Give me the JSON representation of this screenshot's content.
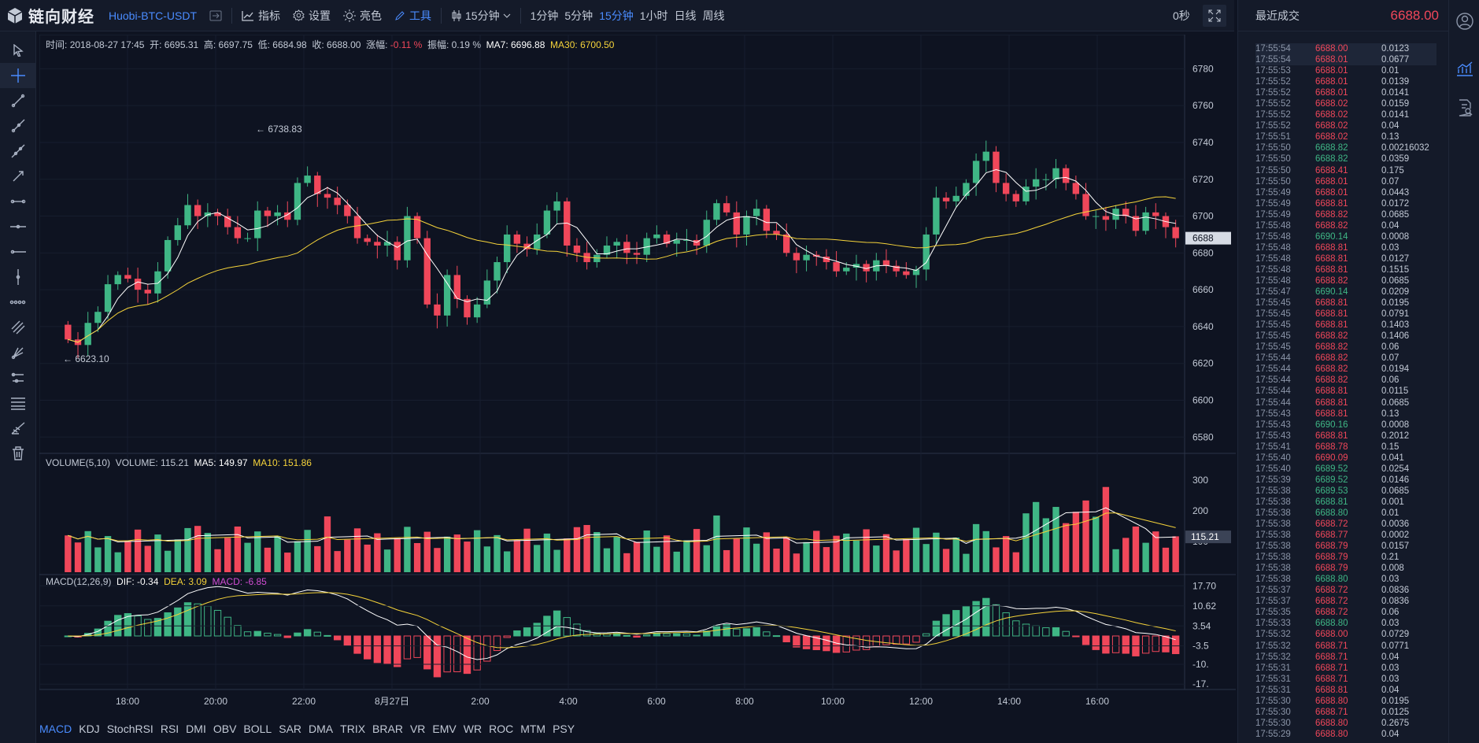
{
  "brand": {
    "name": "链向财经",
    "icon": "cube-logo-icon"
  },
  "symbol": "Huobi-BTC-USDT",
  "menu": {
    "indicator": "指标",
    "settings": "设置",
    "theme": "亮色",
    "tools": "工具"
  },
  "period": {
    "selected": "15分钟",
    "options": [
      "1分钟",
      "5分钟",
      "15分钟",
      "1小时",
      "日线",
      "周线"
    ],
    "active_index": 2
  },
  "timer": "0秒",
  "info": {
    "time_label": "时间:",
    "time": "2018-08-27 17:45",
    "open_label": "开:",
    "open": "6695.31",
    "high_label": "高:",
    "high": "6697.75",
    "low_label": "低:",
    "low": "6684.98",
    "close_label": "收:",
    "close": "6688.00",
    "change_label": "涨幅:",
    "change": "-0.11 %",
    "amp_label": "振幅:",
    "amp": "0.19 %",
    "ma7": "MA7: 6696.88",
    "ma30": "MA30: 6700.50"
  },
  "volume_info": {
    "label": "VOLUME(5,10)",
    "volume": "VOLUME: 115.21",
    "ma5": "MA5: 149.97",
    "ma10": "MA10: 151.86"
  },
  "macd_info": {
    "label": "MACD(12,26,9)",
    "dif": "DIF: -0.34",
    "dea": "DEA: 3.09",
    "macd": "MACD: -6.85"
  },
  "indicator_tabs": [
    "MACD",
    "KDJ",
    "StochRSI",
    "RSI",
    "DMI",
    "OBV",
    "BOLL",
    "SAR",
    "DMA",
    "TRIX",
    "BRAR",
    "VR",
    "EMV",
    "WR",
    "ROC",
    "MTM",
    "PSY"
  ],
  "chart_data": {
    "type": "candlestick",
    "price_axis": {
      "ticks": [
        "6780",
        "6760",
        "6740",
        "6720",
        "6700",
        "6680",
        "6660",
        "6640",
        "6620",
        "6600",
        "6580"
      ],
      "range": [
        6572,
        6790
      ],
      "current": "6688"
    },
    "time_axis": [
      "18:00",
      "20:00",
      "22:00",
      "8月27日",
      "2:00",
      "4:00",
      "6:00",
      "8:00",
      "10:00",
      "12:00",
      "14:00",
      "16:00"
    ],
    "high_marker": "6738.83",
    "low_marker": "6623.10",
    "close": [
      6633,
      6630,
      6642,
      6648,
      6663,
      6668,
      6666,
      6660,
      6658,
      6670,
      6687,
      6695,
      6706,
      6700,
      6702,
      6700,
      6694,
      6688,
      6688,
      6703,
      6700,
      6702,
      6698,
      6718,
      6722,
      6712,
      6710,
      6706,
      6700,
      6688,
      6686,
      6684,
      6686,
      6676,
      6700,
      6688,
      6652,
      6646,
      6668,
      6655,
      6645,
      6652,
      6665,
      6675,
      6690,
      6685,
      6682,
      6690,
      6703,
      6708,
      6684,
      6680,
      6675,
      6679,
      6684,
      6686,
      6680,
      6679,
      6688,
      6690,
      6685,
      6687,
      6687,
      6684,
      6698,
      6707,
      6702,
      6690,
      6700,
      6704,
      6692,
      6690,
      6680,
      6676,
      6679,
      6678,
      6675,
      6670,
      6672,
      6674,
      6670,
      6676,
      6673,
      6670,
      6668,
      6671,
      6690,
      6710,
      6708,
      6711,
      6718,
      6730,
      6735,
      6718,
      6712,
      6708,
      6716,
      6720,
      6720,
      6726,
      6718,
      6712,
      6700,
      6700,
      6698,
      6704,
      6700,
      6692,
      6702,
      6700,
      6694,
      6688
    ],
    "volume_axis": [
      "300",
      "200",
      "100"
    ],
    "volume_current": "115.21",
    "macd_axis": [
      "17.70",
      "10.62",
      "3.54",
      "-3.5",
      "-10.",
      "-17."
    ]
  },
  "trades": {
    "title": "最近成交",
    "last_price": "6688.00",
    "rows": [
      [
        "17:55:54",
        "6688.00",
        "0.0123",
        "r"
      ],
      [
        "17:55:54",
        "6688.01",
        "0.0677",
        "r"
      ],
      [
        "17:55:53",
        "6688.01",
        "0.01",
        "r"
      ],
      [
        "17:55:52",
        "6688.01",
        "0.0139",
        "r"
      ],
      [
        "17:55:52",
        "6688.01",
        "0.0141",
        "r"
      ],
      [
        "17:55:52",
        "6688.02",
        "0.0159",
        "r"
      ],
      [
        "17:55:52",
        "6688.02",
        "0.0141",
        "r"
      ],
      [
        "17:55:52",
        "6688.02",
        "0.04",
        "r"
      ],
      [
        "17:55:51",
        "6688.02",
        "0.13",
        "r"
      ],
      [
        "17:55:50",
        "6688.82",
        "0.00216032",
        "g"
      ],
      [
        "17:55:50",
        "6688.82",
        "0.0359",
        "g"
      ],
      [
        "17:55:50",
        "6688.41",
        "0.175",
        "r"
      ],
      [
        "17:55:50",
        "6688.01",
        "0.07",
        "r"
      ],
      [
        "17:55:49",
        "6688.01",
        "0.0443",
        "r"
      ],
      [
        "17:55:49",
        "6688.81",
        "0.0172",
        "r"
      ],
      [
        "17:55:49",
        "6688.82",
        "0.0685",
        "r"
      ],
      [
        "17:55:48",
        "6688.82",
        "0.04",
        "r"
      ],
      [
        "17:55:48",
        "6690.14",
        "0.0008",
        "g"
      ],
      [
        "17:55:48",
        "6688.81",
        "0.03",
        "r"
      ],
      [
        "17:55:48",
        "6688.81",
        "0.0127",
        "r"
      ],
      [
        "17:55:48",
        "6688.81",
        "0.1515",
        "r"
      ],
      [
        "17:55:48",
        "6688.82",
        "0.0685",
        "r"
      ],
      [
        "17:55:47",
        "6690.14",
        "0.0209",
        "g"
      ],
      [
        "17:55:45",
        "6688.81",
        "0.0195",
        "r"
      ],
      [
        "17:55:45",
        "6688.81",
        "0.0791",
        "r"
      ],
      [
        "17:55:45",
        "6688.81",
        "0.1403",
        "r"
      ],
      [
        "17:55:45",
        "6688.82",
        "0.1406",
        "r"
      ],
      [
        "17:55:45",
        "6688.82",
        "0.06",
        "r"
      ],
      [
        "17:55:44",
        "6688.82",
        "0.07",
        "r"
      ],
      [
        "17:55:44",
        "6688.82",
        "0.0194",
        "r"
      ],
      [
        "17:55:44",
        "6688.82",
        "0.06",
        "r"
      ],
      [
        "17:55:44",
        "6688.81",
        "0.0115",
        "r"
      ],
      [
        "17:55:44",
        "6688.81",
        "0.0685",
        "r"
      ],
      [
        "17:55:43",
        "6688.81",
        "0.13",
        "r"
      ],
      [
        "17:55:43",
        "6690.16",
        "0.0008",
        "g"
      ],
      [
        "17:55:43",
        "6688.81",
        "0.2012",
        "r"
      ],
      [
        "17:55:41",
        "6688.78",
        "0.15",
        "r"
      ],
      [
        "17:55:40",
        "6690.09",
        "0.041",
        "r"
      ],
      [
        "17:55:40",
        "6689.52",
        "0.0254",
        "g"
      ],
      [
        "17:55:39",
        "6689.52",
        "0.0146",
        "g"
      ],
      [
        "17:55:38",
        "6689.53",
        "0.0685",
        "g"
      ],
      [
        "17:55:38",
        "6688.81",
        "0.001",
        "g"
      ],
      [
        "17:55:38",
        "6688.80",
        "0.01",
        "g"
      ],
      [
        "17:55:38",
        "6688.72",
        "0.0036",
        "r"
      ],
      [
        "17:55:38",
        "6688.77",
        "0.0002",
        "r"
      ],
      [
        "17:55:38",
        "6688.79",
        "0.0157",
        "r"
      ],
      [
        "17:55:38",
        "6688.79",
        "0.21",
        "r"
      ],
      [
        "17:55:38",
        "6688.79",
        "0.008",
        "r"
      ],
      [
        "17:55:38",
        "6688.80",
        "0.03",
        "g"
      ],
      [
        "17:55:37",
        "6688.72",
        "0.0836",
        "r"
      ],
      [
        "17:55:37",
        "6688.72",
        "0.0836",
        "r"
      ],
      [
        "17:55:35",
        "6688.72",
        "0.06",
        "r"
      ],
      [
        "17:55:33",
        "6688.80",
        "0.03",
        "g"
      ],
      [
        "17:55:32",
        "6688.00",
        "0.0729",
        "r"
      ],
      [
        "17:55:32",
        "6688.71",
        "0.0771",
        "r"
      ],
      [
        "17:55:32",
        "6688.71",
        "0.04",
        "r"
      ],
      [
        "17:55:31",
        "6688.71",
        "0.03",
        "r"
      ],
      [
        "17:55:31",
        "6688.71",
        "0.03",
        "r"
      ],
      [
        "17:55:31",
        "6688.81",
        "0.04",
        "r"
      ],
      [
        "17:55:30",
        "6688.80",
        "0.0195",
        "r"
      ],
      [
        "17:55:30",
        "6688.71",
        "0.0125",
        "r"
      ],
      [
        "17:55:30",
        "6688.80",
        "0.2675",
        "r"
      ],
      [
        "17:55:29",
        "6688.80",
        "0.04",
        "r"
      ]
    ]
  },
  "colors": {
    "up": "#3fb685",
    "down": "#f0475a",
    "ma_fast": "#ffffff",
    "ma_slow": "#f5d33a",
    "accent": "#4a8cff",
    "bg": "#0e1321"
  }
}
